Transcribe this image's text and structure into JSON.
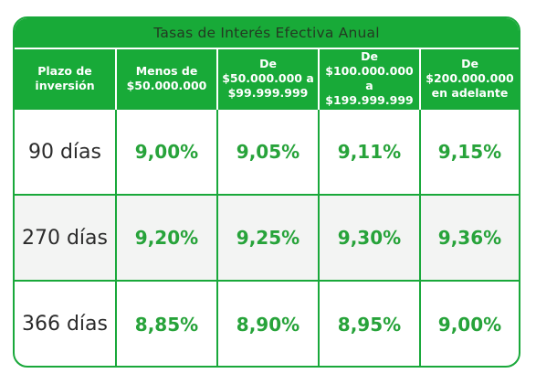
{
  "table": {
    "title": "Tasas de Interés Efectiva Anual",
    "headers": [
      [
        "Plazo de",
        "inversión"
      ],
      [
        "Menos de",
        "$50.000.000"
      ],
      [
        "De",
        "$50.000.000 a",
        "$99.999.999"
      ],
      [
        "De",
        "$100.000.000",
        "a $199.999.999"
      ],
      [
        "De",
        "$200.000.000",
        "en adelante"
      ]
    ],
    "rows": [
      {
        "term": "90 días",
        "rates": [
          "9,00%",
          "9,05%",
          "9,11%",
          "9,15%"
        ]
      },
      {
        "term": "270 días",
        "rates": [
          "9,20%",
          "9,25%",
          "9,30%",
          "9,36%"
        ]
      },
      {
        "term": "366 días",
        "rates": [
          "8,85%",
          "8,90%",
          "8,95%",
          "9,00%"
        ]
      }
    ]
  }
}
